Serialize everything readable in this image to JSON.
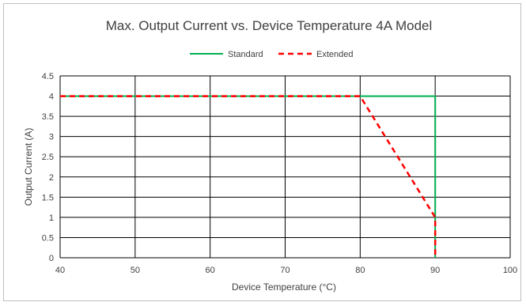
{
  "chart_data": {
    "type": "line",
    "title": "Max. Output Current vs. Device Temperature  4A Model",
    "xlabel": "Device Temperature (°C)",
    "ylabel": "Output Current (A)",
    "xlim": [
      40,
      100
    ],
    "ylim": [
      0,
      4.5
    ],
    "x_ticks": [
      "40",
      "50",
      "60",
      "70",
      "80",
      "90",
      "100"
    ],
    "y_ticks": [
      "0",
      "0.5",
      "1",
      "1.5",
      "2",
      "2.5",
      "3",
      "3.5",
      "4",
      "4.5"
    ],
    "grid": true,
    "legend_position": "top",
    "series": [
      {
        "name": "Standard",
        "color": "#00b050",
        "line_style": "solid",
        "points": [
          [
            40,
            4
          ],
          [
            90,
            4
          ],
          [
            90,
            0
          ]
        ]
      },
      {
        "name": "Extended",
        "color": "#ff0000",
        "line_style": "dashed",
        "points": [
          [
            40,
            4
          ],
          [
            80,
            4
          ],
          [
            90,
            1
          ],
          [
            90,
            0
          ]
        ]
      }
    ]
  }
}
